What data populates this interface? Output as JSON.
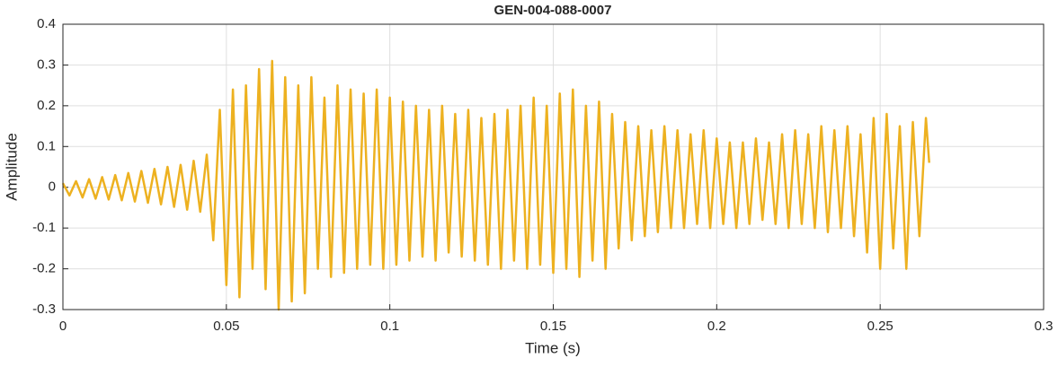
{
  "chart_data": {
    "type": "line",
    "title": "GEN-004-088-0007",
    "x_label": "Time (s)",
    "y_label": "Amplitude",
    "color": "#EDB120",
    "grid": true,
    "xlim": [
      0,
      0.3
    ],
    "xticks": [
      0,
      0.05,
      0.1,
      0.15,
      0.2,
      0.25,
      0.3
    ],
    "ylim": [
      -0.3,
      0.4
    ],
    "yticks": [
      -0.3,
      -0.2,
      -0.1,
      0,
      0.1,
      0.2,
      0.3,
      0.4
    ],
    "x": [
      0,
      0.002,
      0.004,
      0.006,
      0.008,
      0.01,
      0.012,
      0.014,
      0.016,
      0.018,
      0.02,
      0.022,
      0.024,
      0.026,
      0.028,
      0.03,
      0.032,
      0.034,
      0.036,
      0.038,
      0.04,
      0.042,
      0.044,
      0.046,
      0.048,
      0.05,
      0.052,
      0.054,
      0.056,
      0.058,
      0.06,
      0.062,
      0.064,
      0.066,
      0.068,
      0.07,
      0.072,
      0.074,
      0.076,
      0.078,
      0.08,
      0.082,
      0.084,
      0.086,
      0.088,
      0.09,
      0.092,
      0.094,
      0.096,
      0.098,
      0.1,
      0.102,
      0.104,
      0.106,
      0.108,
      0.11,
      0.112,
      0.114,
      0.116,
      0.118,
      0.12,
      0.122,
      0.124,
      0.126,
      0.128,
      0.13,
      0.132,
      0.134,
      0.136,
      0.138,
      0.14,
      0.142,
      0.144,
      0.146,
      0.148,
      0.15,
      0.152,
      0.154,
      0.156,
      0.158,
      0.16,
      0.162,
      0.164,
      0.166,
      0.168,
      0.17,
      0.172,
      0.174,
      0.176,
      0.178,
      0.18,
      0.182,
      0.184,
      0.186,
      0.188,
      0.19,
      0.192,
      0.194,
      0.196,
      0.198,
      0.2,
      0.202,
      0.204,
      0.206,
      0.208,
      0.21,
      0.212,
      0.214,
      0.216,
      0.218,
      0.22,
      0.222,
      0.224,
      0.226,
      0.228,
      0.23,
      0.232,
      0.234,
      0.236,
      0.238,
      0.24,
      0.242,
      0.244,
      0.246,
      0.248,
      0.25,
      0.252,
      0.254,
      0.256,
      0.258,
      0.26,
      0.262,
      0.264,
      0.265
    ],
    "values": [
      0.01,
      -0.02,
      0.015,
      -0.025,
      0.02,
      -0.028,
      0.025,
      -0.03,
      0.03,
      -0.032,
      0.035,
      -0.035,
      0.04,
      -0.038,
      0.045,
      -0.042,
      0.05,
      -0.048,
      0.055,
      -0.055,
      0.065,
      -0.06,
      0.08,
      -0.13,
      0.19,
      -0.24,
      0.24,
      -0.27,
      0.25,
      -0.2,
      0.29,
      -0.25,
      0.31,
      -0.3,
      0.27,
      -0.28,
      0.25,
      -0.26,
      0.27,
      -0.2,
      0.22,
      -0.22,
      0.25,
      -0.21,
      0.24,
      -0.2,
      0.23,
      -0.19,
      0.24,
      -0.2,
      0.22,
      -0.19,
      0.21,
      -0.18,
      0.2,
      -0.17,
      0.19,
      -0.18,
      0.2,
      -0.16,
      0.18,
      -0.17,
      0.19,
      -0.18,
      0.17,
      -0.19,
      0.18,
      -0.2,
      0.19,
      -0.18,
      0.2,
      -0.2,
      0.22,
      -0.19,
      0.2,
      -0.21,
      0.23,
      -0.2,
      0.24,
      -0.22,
      0.2,
      -0.18,
      0.21,
      -0.2,
      0.18,
      -0.15,
      0.16,
      -0.13,
      0.15,
      -0.12,
      0.14,
      -0.11,
      0.15,
      -0.1,
      0.14,
      -0.1,
      0.13,
      -0.09,
      0.14,
      -0.1,
      0.12,
      -0.09,
      0.11,
      -0.1,
      0.11,
      -0.09,
      0.12,
      -0.08,
      0.11,
      -0.09,
      0.13,
      -0.1,
      0.14,
      -0.09,
      0.13,
      -0.1,
      0.15,
      -0.11,
      0.14,
      -0.1,
      0.15,
      -0.12,
      0.13,
      -0.16,
      0.17,
      -0.2,
      0.18,
      -0.15,
      0.15,
      -0.2,
      0.16,
      -0.12,
      0.17,
      0.06
    ]
  }
}
